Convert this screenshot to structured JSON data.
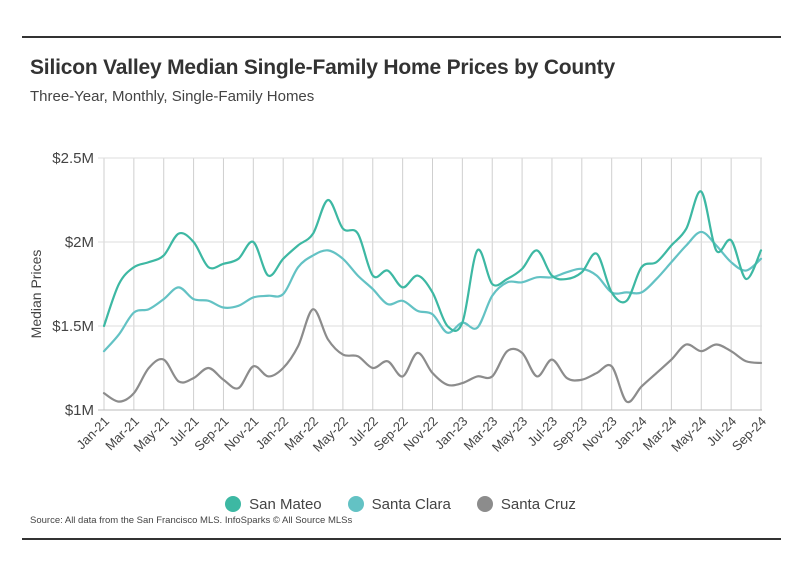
{
  "title": "Silicon Valley Median Single-Family Home Prices by County",
  "subtitle": "Three-Year, Monthly, Single-Family Homes",
  "source": "Source:  All data from the San Francisco MLS. InfoSparks © All Source MLSs",
  "chart_data": {
    "type": "line",
    "title": "Silicon Valley Median Single-Family Home Prices by County",
    "subtitle": "Three-Year, Monthly, Single-Family Homes",
    "xlabel": "",
    "ylabel": "Median Prices",
    "ylim": [
      1.0,
      2.5
    ],
    "yticks": [
      1.0,
      1.5,
      2.0,
      2.5
    ],
    "ytick_labels": [
      "$1M",
      "$1.5M",
      "$2M",
      "$2.5M"
    ],
    "grid": "vertical",
    "legend_position": "bottom",
    "categories": [
      "Jan-21",
      "Feb-21",
      "Mar-21",
      "Apr-21",
      "May-21",
      "Jun-21",
      "Jul-21",
      "Aug-21",
      "Sep-21",
      "Oct-21",
      "Nov-21",
      "Dec-21",
      "Jan-22",
      "Feb-22",
      "Mar-22",
      "Apr-22",
      "May-22",
      "Jun-22",
      "Jul-22",
      "Aug-22",
      "Sep-22",
      "Oct-22",
      "Nov-22",
      "Dec-22",
      "Jan-23",
      "Feb-23",
      "Mar-23",
      "Apr-23",
      "May-23",
      "Jun-23",
      "Jul-23",
      "Aug-23",
      "Sep-23",
      "Oct-23",
      "Nov-23",
      "Dec-23",
      "Jan-24",
      "Feb-24",
      "Mar-24",
      "Apr-24",
      "May-24",
      "Jun-24",
      "Jul-24",
      "Aug-24",
      "Sep-24"
    ],
    "tick_labels": [
      "Jan-21",
      "Mar-21",
      "May-21",
      "Jul-21",
      "Sep-21",
      "Nov-21",
      "Jan-22",
      "Mar-22",
      "May-22",
      "Jul-22",
      "Sep-22",
      "Nov-22",
      "Jan-23",
      "Mar-23",
      "May-23",
      "Jul-23",
      "Sep-23",
      "Nov-23",
      "Jan-24",
      "Mar-24",
      "May-24",
      "Jul-24",
      "Sep-24"
    ],
    "series": [
      {
        "name": "San Mateo",
        "color": "#3db8a3",
        "values": [
          1.5,
          1.75,
          1.85,
          1.88,
          1.92,
          2.05,
          2.0,
          1.85,
          1.87,
          1.9,
          2.0,
          1.8,
          1.9,
          1.98,
          2.05,
          2.25,
          2.08,
          2.05,
          1.8,
          1.83,
          1.73,
          1.8,
          1.7,
          1.5,
          1.52,
          1.95,
          1.75,
          1.78,
          1.84,
          1.95,
          1.8,
          1.78,
          1.82,
          1.93,
          1.7,
          1.65,
          1.85,
          1.88,
          1.98,
          2.08,
          2.3,
          1.95,
          2.01,
          1.78,
          1.95
        ]
      },
      {
        "name": "Santa Clara",
        "color": "#63c2c4",
        "values": [
          1.35,
          1.45,
          1.58,
          1.6,
          1.66,
          1.73,
          1.66,
          1.65,
          1.61,
          1.62,
          1.67,
          1.68,
          1.69,
          1.85,
          1.92,
          1.95,
          1.9,
          1.8,
          1.72,
          1.63,
          1.65,
          1.59,
          1.57,
          1.46,
          1.52,
          1.49,
          1.68,
          1.76,
          1.76,
          1.79,
          1.79,
          1.82,
          1.84,
          1.8,
          1.7,
          1.7,
          1.7,
          1.78,
          1.88,
          1.98,
          2.06,
          1.98,
          1.88,
          1.83,
          1.9
        ]
      },
      {
        "name": "Santa Cruz",
        "color": "#8c8c8c",
        "values": [
          1.1,
          1.05,
          1.1,
          1.25,
          1.3,
          1.17,
          1.19,
          1.25,
          1.18,
          1.13,
          1.26,
          1.2,
          1.25,
          1.38,
          1.6,
          1.42,
          1.33,
          1.32,
          1.25,
          1.29,
          1.2,
          1.34,
          1.22,
          1.15,
          1.16,
          1.2,
          1.2,
          1.35,
          1.34,
          1.2,
          1.3,
          1.19,
          1.18,
          1.22,
          1.26,
          1.05,
          1.14,
          1.22,
          1.3,
          1.39,
          1.35,
          1.39,
          1.35,
          1.29,
          1.28
        ]
      }
    ]
  }
}
